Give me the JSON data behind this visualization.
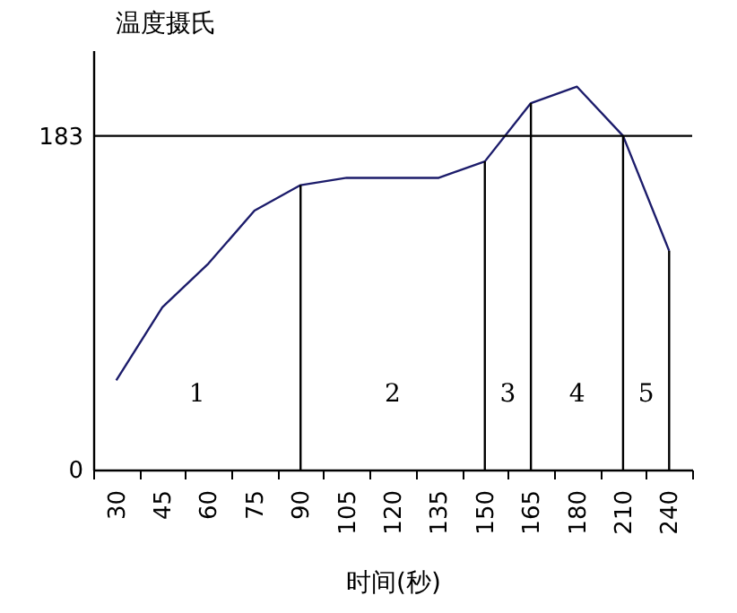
{
  "chart_data": {
    "type": "line",
    "xlabel": "时间(秒)",
    "ylabel": "温度摄氏",
    "categories": [
      "30",
      "45",
      "60",
      "75",
      "90",
      "105",
      "120",
      "135",
      "150",
      "165",
      "180",
      "210",
      "240"
    ],
    "series": [
      {
        "color": "#1c1c6b",
        "values": [
          49,
          89,
          113,
          142,
          156,
          160,
          160,
          160,
          169,
          201,
          210,
          183,
          120
        ]
      }
    ],
    "ylim": [
      0,
      230
    ],
    "yticks": [
      0,
      183
    ],
    "ref_lines": [
      {
        "axis": "y",
        "value": 183,
        "color": "#000000"
      },
      {
        "axis": "x",
        "value": "90",
        "color": "#000000"
      },
      {
        "axis": "x",
        "value": "150",
        "color": "#000000"
      },
      {
        "axis": "x",
        "value": "165",
        "color": "#000000"
      },
      {
        "axis": "x",
        "value": "210",
        "color": "#000000"
      },
      {
        "axis": "x",
        "value": "240",
        "color": "#000000"
      }
    ],
    "annotations": [
      "1",
      "2",
      "3",
      "4",
      "5"
    ],
    "marker": "none",
    "line_style": "solid"
  }
}
